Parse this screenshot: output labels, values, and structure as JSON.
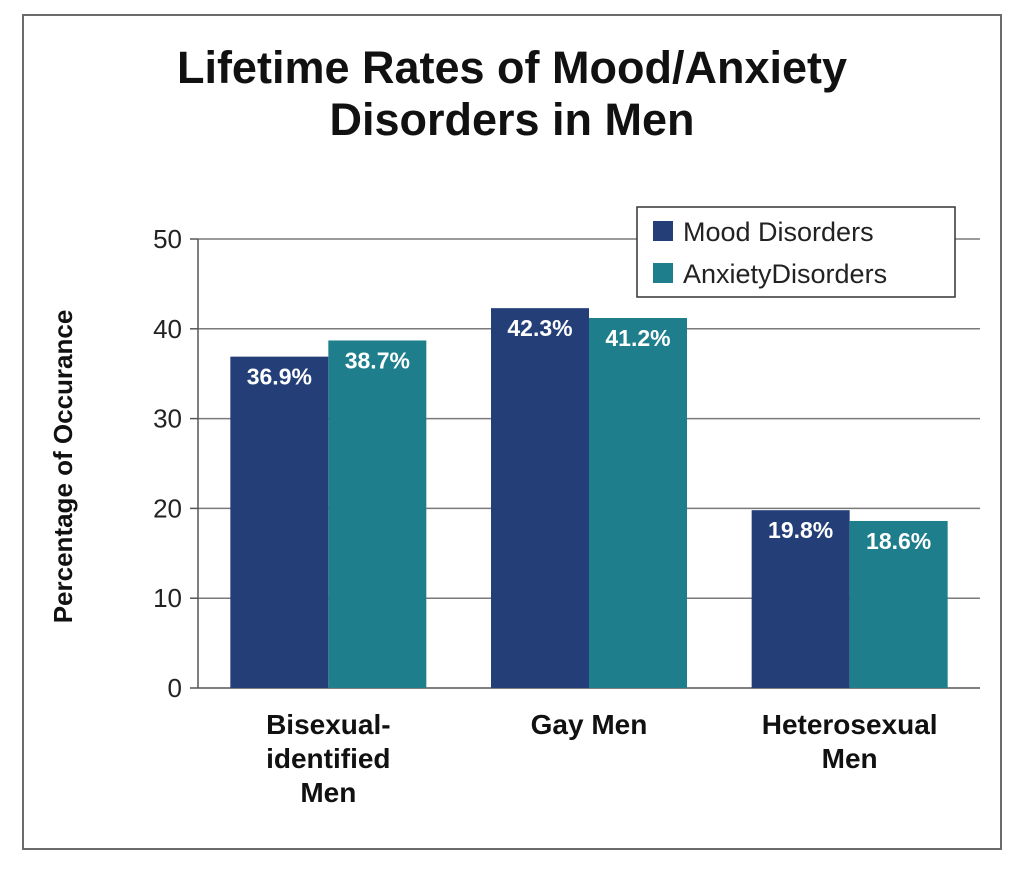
{
  "chart_data": {
    "type": "bar",
    "title_lines": [
      "Lifetime Rates of Mood/Anxiety",
      "Disorders in Men"
    ],
    "ylabel": "Percentage of Occurance",
    "xlabel": "",
    "ylim": [
      0,
      50
    ],
    "yticks": [
      0,
      10,
      20,
      30,
      40,
      50
    ],
    "grid": true,
    "legend_position": "top-right",
    "categories": [
      [
        "Bisexual-",
        "identified",
        "Men"
      ],
      [
        "Gay Men"
      ],
      [
        "Heterosexual",
        "Men"
      ]
    ],
    "series": [
      {
        "name": "Mood Disorders",
        "color": "#243f78",
        "values": [
          36.9,
          42.3,
          19.8
        ],
        "labels": [
          "36.9%",
          "42.3%",
          "19.8%"
        ]
      },
      {
        "name": "AnxietyDisorders",
        "color": "#1e7e8c",
        "values": [
          38.7,
          41.2,
          18.6
        ],
        "labels": [
          "38.7%",
          "41.2%",
          "18.6%"
        ]
      }
    ]
  }
}
